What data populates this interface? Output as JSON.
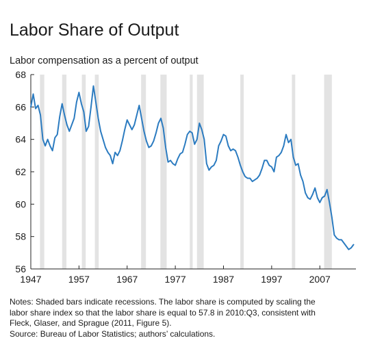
{
  "chart_data": {
    "type": "line",
    "title": "Labor Share of Output",
    "subtitle": "Labor compensation as a percent of output",
    "xlabel": "",
    "ylabel": "",
    "xlim": [
      1947,
      2014.5
    ],
    "ylim": [
      56,
      68
    ],
    "x_ticks": [
      1947,
      1957,
      1967,
      1977,
      1987,
      1997,
      2007
    ],
    "y_ticks": [
      56,
      58,
      60,
      62,
      64,
      66,
      68
    ],
    "grid": false,
    "legend": "none",
    "line_color": "#2b7bc0",
    "recession_color": "#e3e3e3",
    "recessions": [
      [
        1948.9,
        1949.8
      ],
      [
        1953.5,
        1954.4
      ],
      [
        1957.6,
        1958.4
      ],
      [
        1960.3,
        1961.1
      ],
      [
        1969.9,
        1970.9
      ],
      [
        1973.9,
        1975.2
      ],
      [
        1980.0,
        1980.6
      ],
      [
        1981.5,
        1982.9
      ],
      [
        1990.5,
        1991.2
      ],
      [
        2001.2,
        2001.9
      ],
      [
        2007.9,
        2009.5
      ]
    ],
    "series": [
      {
        "x": [
          1947.0,
          1947.5,
          1948.0,
          1948.5,
          1949.0,
          1949.5,
          1950.0,
          1950.5,
          1951.0,
          1951.5,
          1952.0,
          1952.5,
          1953.0,
          1953.5,
          1954.0,
          1954.5,
          1955.0,
          1955.5,
          1956.0,
          1956.5,
          1957.0,
          1957.5,
          1958.0,
          1958.5,
          1959.0,
          1959.5,
          1960.0,
          1960.5,
          1961.0,
          1961.5,
          1962.0,
          1962.5,
          1963.0,
          1963.5,
          1964.0,
          1964.5,
          1965.0,
          1965.5,
          1966.0,
          1966.5,
          1967.0,
          1967.5,
          1968.0,
          1968.5,
          1969.0,
          1969.5,
          1970.0,
          1970.5,
          1971.0,
          1971.5,
          1972.0,
          1972.5,
          1973.0,
          1973.5,
          1974.0,
          1974.5,
          1975.0,
          1975.5,
          1976.0,
          1976.5,
          1977.0,
          1977.5,
          1978.0,
          1978.5,
          1979.0,
          1979.5,
          1980.0,
          1980.5,
          1981.0,
          1981.5,
          1982.0,
          1982.5,
          1983.0,
          1983.5,
          1984.0,
          1984.5,
          1985.0,
          1985.5,
          1986.0,
          1986.5,
          1987.0,
          1987.5,
          1988.0,
          1988.5,
          1989.0,
          1989.5,
          1990.0,
          1990.5,
          1991.0,
          1991.5,
          1992.0,
          1992.5,
          1993.0,
          1993.5,
          1994.0,
          1994.5,
          1995.0,
          1995.5,
          1996.0,
          1996.5,
          1997.0,
          1997.5,
          1998.0,
          1998.5,
          1999.0,
          1999.5,
          2000.0,
          2000.5,
          2001.0,
          2001.5,
          2002.0,
          2002.5,
          2003.0,
          2003.5,
          2004.0,
          2004.5,
          2005.0,
          2005.5,
          2006.0,
          2006.5,
          2007.0,
          2007.5,
          2008.0,
          2008.5,
          2009.0,
          2009.5,
          2010.0,
          2010.5,
          2011.0,
          2011.5,
          2012.0,
          2012.5,
          2013.0,
          2013.5,
          2014.0
        ],
        "values": [
          66.0,
          66.8,
          65.9,
          66.1,
          65.5,
          64.0,
          63.6,
          64.0,
          63.6,
          63.3,
          64.1,
          64.3,
          65.4,
          66.2,
          65.5,
          64.9,
          64.5,
          64.9,
          65.3,
          66.3,
          66.9,
          66.2,
          65.7,
          64.5,
          64.8,
          66.0,
          67.3,
          66.3,
          65.3,
          64.5,
          64.0,
          63.5,
          63.2,
          63.0,
          62.5,
          63.2,
          63.0,
          63.3,
          63.9,
          64.6,
          65.2,
          64.9,
          64.6,
          64.9,
          65.5,
          66.1,
          65.3,
          64.5,
          63.9,
          63.5,
          63.6,
          63.9,
          64.4,
          65.0,
          65.3,
          64.7,
          63.5,
          62.6,
          62.7,
          62.5,
          62.4,
          62.8,
          63.1,
          63.2,
          63.7,
          64.3,
          64.5,
          64.4,
          63.7,
          64.0,
          65.0,
          64.6,
          64.0,
          62.5,
          62.1,
          62.3,
          62.4,
          62.7,
          63.6,
          63.9,
          64.3,
          64.2,
          63.6,
          63.3,
          63.4,
          63.3,
          62.9,
          62.4,
          62.0,
          61.7,
          61.6,
          61.6,
          61.4,
          61.5,
          61.6,
          61.8,
          62.2,
          62.7,
          62.7,
          62.4,
          62.3,
          62.0,
          62.9,
          63.0,
          63.2,
          63.6,
          64.3,
          63.8,
          64.0,
          62.9,
          62.4,
          62.5,
          61.8,
          61.4,
          60.7,
          60.4,
          60.3,
          60.6,
          61.0,
          60.4,
          60.1,
          60.4,
          60.5,
          60.9,
          60.1,
          59.2,
          58.1,
          57.9,
          57.8,
          57.8,
          57.6,
          57.4,
          57.2,
          57.3,
          57.5
        ]
      }
    ]
  },
  "notes": {
    "line1": "Notes: Shaded bars indicate recessions. The labor share is computed by scaling the",
    "line2": "labor share index so that the labor share is equal to 57.8 in 2010:Q3, consistent with",
    "line3": "Fleck, Glaser, and Sprague (2011, Figure 5).",
    "source": "Source: Bureau of Labor Statistics; authors’ calculations."
  }
}
